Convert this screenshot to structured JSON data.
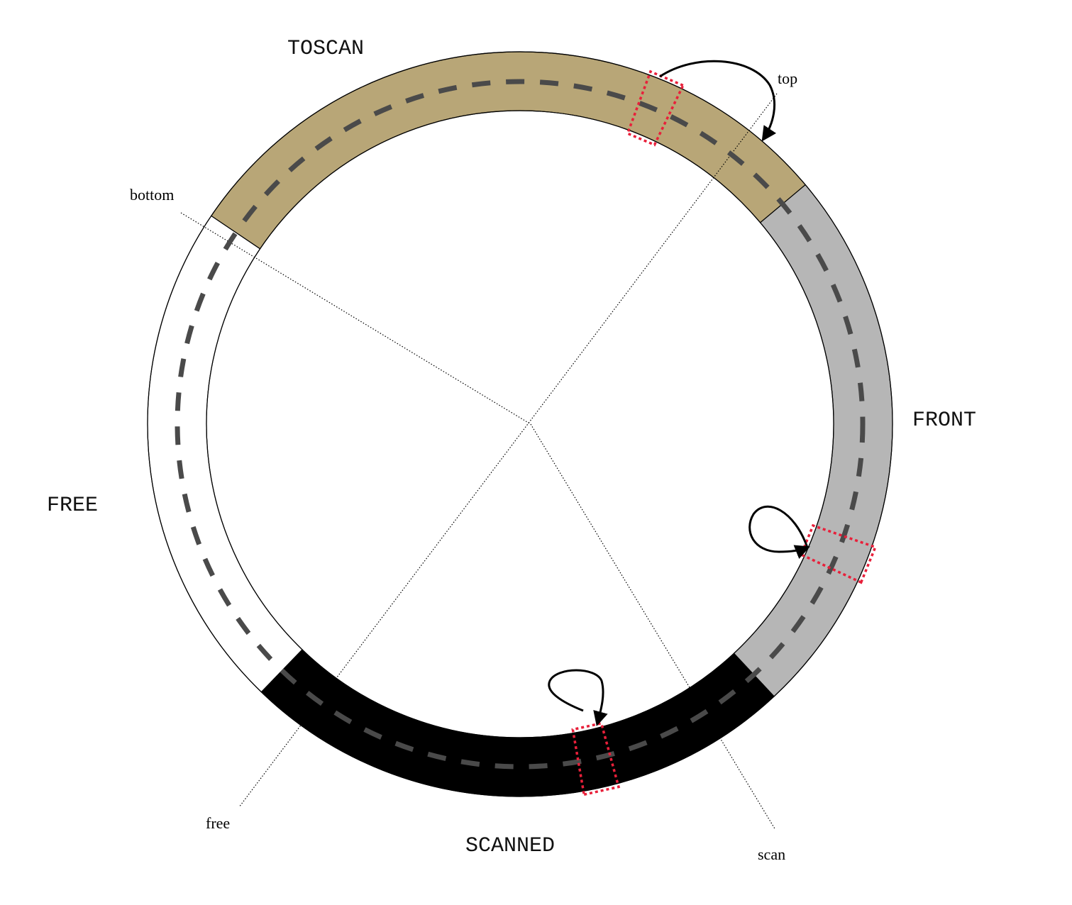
{
  "regions": {
    "toscan": {
      "label": "TOSCAN",
      "color": "#b8a677"
    },
    "front": {
      "label": "FRONT",
      "color": "#b6b6b6"
    },
    "scanned": {
      "label": "SCANNED",
      "color": "#000000"
    },
    "free": {
      "label": "FREE",
      "color": "#ffffff"
    }
  },
  "pointers": {
    "top": "top",
    "bottom": "bottom",
    "scan": "scan",
    "free": "free"
  },
  "colors": {
    "ring_outline": "#000000",
    "dash_track": "#4a4a4a",
    "marker": "#e8203a"
  }
}
